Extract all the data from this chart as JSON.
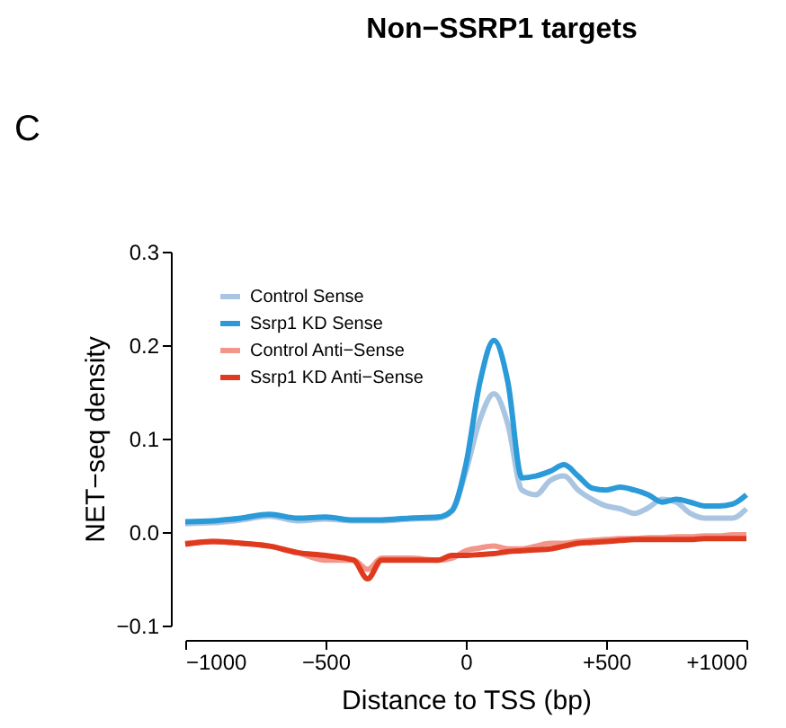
{
  "chart_data": {
    "type": "line",
    "title": "Non−SSRP1 targets",
    "xlabel": "Distance to TSS (bp)",
    "ylabel": "NET−seq density",
    "annotations": [
      "C"
    ],
    "x": [
      -1000,
      -900,
      -800,
      -700,
      -600,
      -500,
      -400,
      -350,
      -300,
      -200,
      -100,
      -50,
      0,
      50,
      100,
      150,
      200,
      250,
      300,
      350,
      400,
      450,
      500,
      550,
      600,
      650,
      700,
      750,
      800,
      850,
      900,
      950,
      1000
    ],
    "series": [
      {
        "name": "Control Sense",
        "color": "#a9c5e2",
        "values": [
          0.009,
          0.01,
          0.013,
          0.017,
          0.012,
          0.014,
          0.012,
          0.012,
          0.012,
          0.014,
          0.015,
          0.022,
          0.065,
          0.12,
          0.148,
          0.115,
          0.045,
          0.04,
          0.055,
          0.06,
          0.045,
          0.035,
          0.028,
          0.025,
          0.02,
          0.026,
          0.035,
          0.032,
          0.02,
          0.015,
          0.015,
          0.015,
          0.025
        ]
      },
      {
        "name": "Ssrp1 KD Sense",
        "color": "#2a9ad8",
        "values": [
          0.011,
          0.012,
          0.015,
          0.019,
          0.015,
          0.016,
          0.013,
          0.013,
          0.013,
          0.015,
          0.016,
          0.023,
          0.072,
          0.16,
          0.205,
          0.16,
          0.058,
          0.06,
          0.065,
          0.072,
          0.06,
          0.047,
          0.045,
          0.048,
          0.045,
          0.04,
          0.032,
          0.035,
          0.032,
          0.028,
          0.028,
          0.03,
          0.04
        ]
      },
      {
        "name": "Control Anti−Sense",
        "color": "#f2958a",
        "values": [
          -0.012,
          -0.01,
          -0.012,
          -0.015,
          -0.022,
          -0.03,
          -0.03,
          -0.04,
          -0.028,
          -0.028,
          -0.03,
          -0.028,
          -0.02,
          -0.017,
          -0.015,
          -0.018,
          -0.018,
          -0.015,
          -0.012,
          -0.012,
          -0.01,
          -0.009,
          -0.008,
          -0.007,
          -0.007,
          -0.006,
          -0.006,
          -0.005,
          -0.005,
          -0.004,
          -0.004,
          -0.003,
          -0.003
        ]
      },
      {
        "name": "Ssrp1 KD Anti−Sense",
        "color": "#e03a1e",
        "values": [
          -0.013,
          -0.01,
          -0.012,
          -0.015,
          -0.022,
          -0.025,
          -0.03,
          -0.05,
          -0.03,
          -0.03,
          -0.03,
          -0.025,
          -0.025,
          -0.024,
          -0.023,
          -0.021,
          -0.02,
          -0.019,
          -0.018,
          -0.015,
          -0.012,
          -0.011,
          -0.01,
          -0.009,
          -0.008,
          -0.008,
          -0.008,
          -0.008,
          -0.008,
          -0.007,
          -0.007,
          -0.007,
          -0.007
        ]
      }
    ],
    "xlim": [
      -1000,
      1000
    ],
    "xticks": [
      -1000,
      -500,
      0,
      {
        "value": 500,
        "label": "+500"
      },
      {
        "value": 1000,
        "label": "+1000"
      }
    ],
    "ylim": [
      -0.1,
      0.3
    ],
    "yticks": [
      -0.1,
      {
        "value": 0,
        "label": "0.0"
      },
      0.1,
      0.2,
      0.3
    ],
    "grid": false,
    "legend": "top left",
    "marker": "none",
    "line_style": "solid"
  }
}
